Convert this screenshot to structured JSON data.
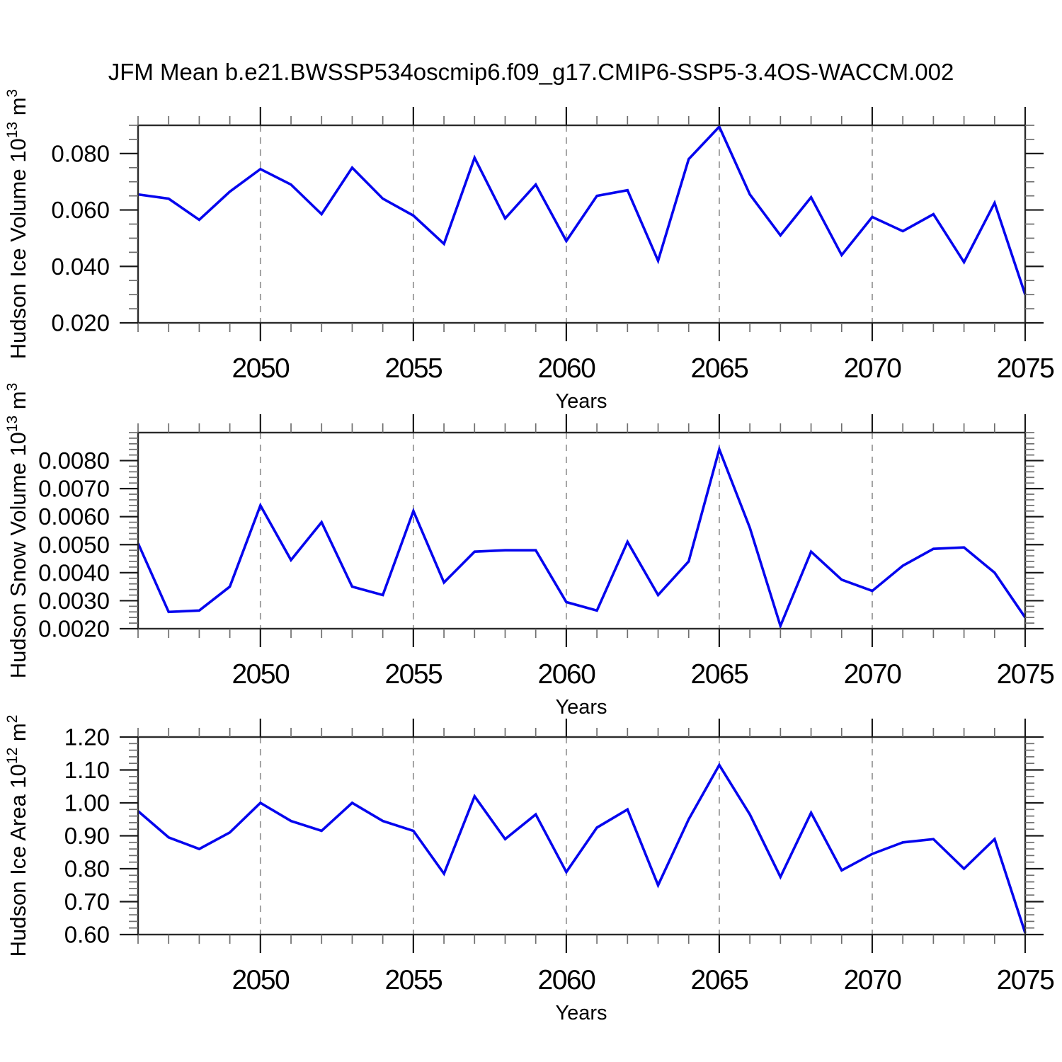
{
  "title": "JFM Mean b.e21.BWSSP534oscmip6.f09_g17.CMIP6-SSP5-3.4OS-WACCM.002",
  "colors": {
    "line": "#0505ee",
    "grid": "#999999",
    "axis": "#2b2b2b",
    "major_tick": "#1a1a1a",
    "minor_tick": "#6e6e6e",
    "text": "#000000",
    "background": "#ffffff"
  },
  "x_axis": {
    "label": "Years",
    "range": [
      2046,
      2075
    ],
    "major_ticks": [
      2050,
      2055,
      2060,
      2065,
      2070,
      2075
    ],
    "major_tick_labels": [
      "2050",
      "2055",
      "2060",
      "2065",
      "2070",
      "2075"
    ],
    "minor_step_years": 1,
    "grid_years": [
      2050,
      2055,
      2060,
      2065,
      2070
    ],
    "grid_style": "dashed"
  },
  "years": [
    2046,
    2047,
    2048,
    2049,
    2050,
    2051,
    2052,
    2053,
    2054,
    2055,
    2056,
    2057,
    2058,
    2059,
    2060,
    2061,
    2062,
    2063,
    2064,
    2065,
    2066,
    2067,
    2068,
    2069,
    2070,
    2071,
    2072,
    2073,
    2074,
    2075
  ],
  "chart_data": [
    {
      "type": "line",
      "id": "hudson-ice-volume",
      "ylabel_plain": "Hudson Ice Volume 10^13 m^3",
      "ylabel_segments": [
        {
          "t": "Hudson Ice Volume 10"
        },
        {
          "t": "13",
          "sup": true
        },
        {
          "t": " m"
        },
        {
          "t": "3",
          "sup": true
        }
      ],
      "ylim": [
        0.02,
        0.09
      ],
      "ytick_values": [
        0.02,
        0.04,
        0.06,
        0.08
      ],
      "ytick_labels": [
        "0.020",
        "0.040",
        "0.060",
        "0.080"
      ],
      "y_minor_step": 0.005,
      "values": [
        0.0655,
        0.064,
        0.0565,
        0.0665,
        0.0745,
        0.069,
        0.0585,
        0.075,
        0.064,
        0.058,
        0.048,
        0.0785,
        0.057,
        0.069,
        0.049,
        0.065,
        0.067,
        0.042,
        0.078,
        0.0895,
        0.0655,
        0.051,
        0.0645,
        0.044,
        0.0575,
        0.0525,
        0.0585,
        0.0415,
        0.0625,
        0.03
      ]
    },
    {
      "type": "line",
      "id": "hudson-snow-volume",
      "ylabel_plain": "Hudson Snow Volume 10^13 m^3",
      "ylabel_segments": [
        {
          "t": "Hudson Snow Volume 10"
        },
        {
          "t": "13",
          "sup": true
        },
        {
          "t": " m"
        },
        {
          "t": "3",
          "sup": true
        }
      ],
      "ylim": [
        0.002,
        0.009
      ],
      "ytick_values": [
        0.002,
        0.003,
        0.004,
        0.005,
        0.006,
        0.007,
        0.008
      ],
      "ytick_labels": [
        "0.0020",
        "0.0030",
        "0.0040",
        "0.0050",
        "0.0060",
        "0.0070",
        "0.0080"
      ],
      "y_minor_step": 0.0002,
      "values": [
        0.00505,
        0.0026,
        0.00265,
        0.0035,
        0.0064,
        0.00445,
        0.0058,
        0.0035,
        0.0032,
        0.0062,
        0.00365,
        0.00475,
        0.0048,
        0.0048,
        0.00295,
        0.00265,
        0.0051,
        0.0032,
        0.0044,
        0.0084,
        0.0056,
        0.0021,
        0.00475,
        0.00375,
        0.00335,
        0.00425,
        0.00485,
        0.0049,
        0.004,
        0.0024
      ]
    },
    {
      "type": "line",
      "id": "hudson-ice-area",
      "ylabel_plain": "Hudson Ice Area 10^12 m^2",
      "ylabel_segments": [
        {
          "t": "Hudson Ice Area 10"
        },
        {
          "t": "12",
          "sup": true
        },
        {
          "t": " m"
        },
        {
          "t": "2",
          "sup": true
        }
      ],
      "ylim": [
        0.6,
        1.2
      ],
      "ytick_values": [
        0.6,
        0.7,
        0.8,
        0.9,
        1.0,
        1.1,
        1.2
      ],
      "ytick_labels": [
        "0.60",
        "0.70",
        "0.80",
        "0.90",
        "1.00",
        "1.10",
        "1.20"
      ],
      "y_minor_step": 0.02,
      "values": [
        0.975,
        0.895,
        0.86,
        0.91,
        1.0,
        0.945,
        0.915,
        1.0,
        0.945,
        0.915,
        0.785,
        1.02,
        0.89,
        0.965,
        0.79,
        0.925,
        0.98,
        0.75,
        0.95,
        1.115,
        0.965,
        0.775,
        0.97,
        0.795,
        0.845,
        0.88,
        0.89,
        0.8,
        0.89,
        0.605
      ]
    }
  ]
}
